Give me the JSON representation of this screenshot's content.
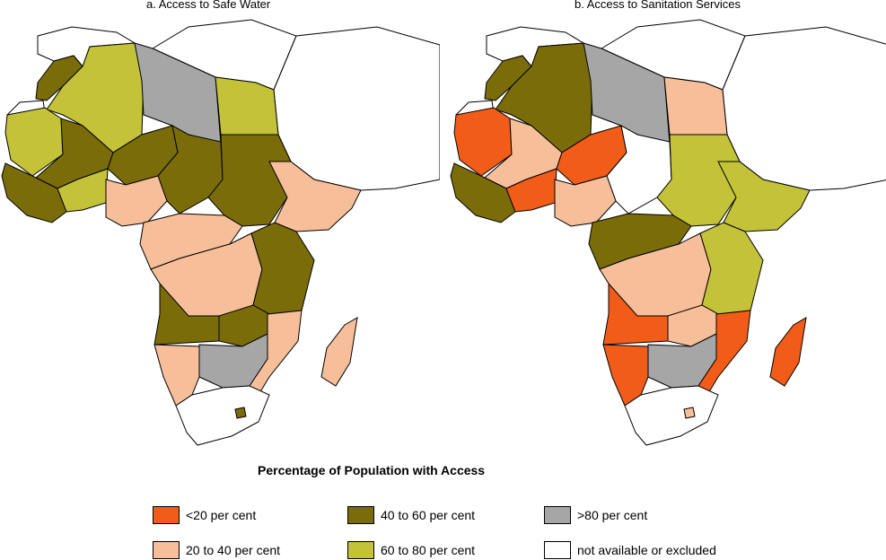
{
  "maps": [
    {
      "title": "a. Access to Safe Water",
      "regions": [
        {
          "name": "morocco-coast",
          "category": "40-60"
        },
        {
          "name": "algeria",
          "category": "60-80"
        },
        {
          "name": "western-sahara",
          "category": "na"
        },
        {
          "name": "libya",
          "category": "gt80"
        },
        {
          "name": "egypt",
          "category": "60-80"
        },
        {
          "name": "mauritania",
          "category": "60-80"
        },
        {
          "name": "mali",
          "category": "40-60"
        },
        {
          "name": "niger",
          "category": "40-60"
        },
        {
          "name": "chad",
          "category": "40-60"
        },
        {
          "name": "sudan",
          "category": "40-60"
        },
        {
          "name": "west-coast",
          "category": "40-60"
        },
        {
          "name": "burkina-faso",
          "category": "60-80"
        },
        {
          "name": "nigeria",
          "category": "20-40"
        },
        {
          "name": "ethiopia",
          "category": "20-40"
        },
        {
          "name": "central-africa",
          "category": "20-40"
        },
        {
          "name": "drc",
          "category": "20-40"
        },
        {
          "name": "kenya-tanzania",
          "category": "40-60"
        },
        {
          "name": "angola",
          "category": "40-60"
        },
        {
          "name": "zambia",
          "category": "40-60"
        },
        {
          "name": "botswana-zimbabwe",
          "category": "gt80"
        },
        {
          "name": "namibia",
          "category": "20-40"
        },
        {
          "name": "mozambique",
          "category": "20-40"
        },
        {
          "name": "south-africa",
          "category": "na"
        },
        {
          "name": "madagascar",
          "category": "20-40"
        },
        {
          "name": "lesotho",
          "category": "40-60"
        }
      ]
    },
    {
      "title": "b. Access to Sanitation Services",
      "regions": [
        {
          "name": "morocco-coast",
          "category": "40-60"
        },
        {
          "name": "algeria",
          "category": "40-60"
        },
        {
          "name": "western-sahara",
          "category": "na"
        },
        {
          "name": "libya",
          "category": "gt80"
        },
        {
          "name": "egypt",
          "category": "20-40"
        },
        {
          "name": "mauritania",
          "category": "lt20"
        },
        {
          "name": "mali",
          "category": "20-40"
        },
        {
          "name": "niger",
          "category": "lt20"
        },
        {
          "name": "chad",
          "category": "na"
        },
        {
          "name": "sudan",
          "category": "60-80"
        },
        {
          "name": "west-coast",
          "category": "40-60"
        },
        {
          "name": "burkina-faso",
          "category": "lt20"
        },
        {
          "name": "nigeria",
          "category": "20-40"
        },
        {
          "name": "ethiopia",
          "category": "60-80"
        },
        {
          "name": "central-africa",
          "category": "40-60"
        },
        {
          "name": "drc",
          "category": "20-40"
        },
        {
          "name": "kenya-tanzania",
          "category": "60-80"
        },
        {
          "name": "angola",
          "category": "lt20"
        },
        {
          "name": "zambia",
          "category": "20-40"
        },
        {
          "name": "botswana-zimbabwe",
          "category": "gt80"
        },
        {
          "name": "namibia",
          "category": "lt20"
        },
        {
          "name": "mozambique",
          "category": "lt20"
        },
        {
          "name": "south-africa",
          "category": "na"
        },
        {
          "name": "madagascar",
          "category": "lt20"
        },
        {
          "name": "lesotho",
          "category": "20-40"
        }
      ]
    }
  ],
  "legend": {
    "title": "Percentage of Population with Access",
    "items": [
      {
        "id": "lt20",
        "label": "<20 per cent",
        "color": "#f25c19"
      },
      {
        "id": "20-40",
        "label": "20 to 40 per cent",
        "color": "#f7be9a"
      },
      {
        "id": "40-60",
        "label": "40 to 60 per cent",
        "color": "#7b6c0a"
      },
      {
        "id": "60-80",
        "label": "60 to 80 per cent",
        "color": "#c3c238"
      },
      {
        "id": "gt80",
        "label": ">80 per cent",
        "color": "#a6a6a6"
      },
      {
        "id": "na",
        "label": "not available or excluded",
        "color": "#ffffff"
      }
    ]
  }
}
